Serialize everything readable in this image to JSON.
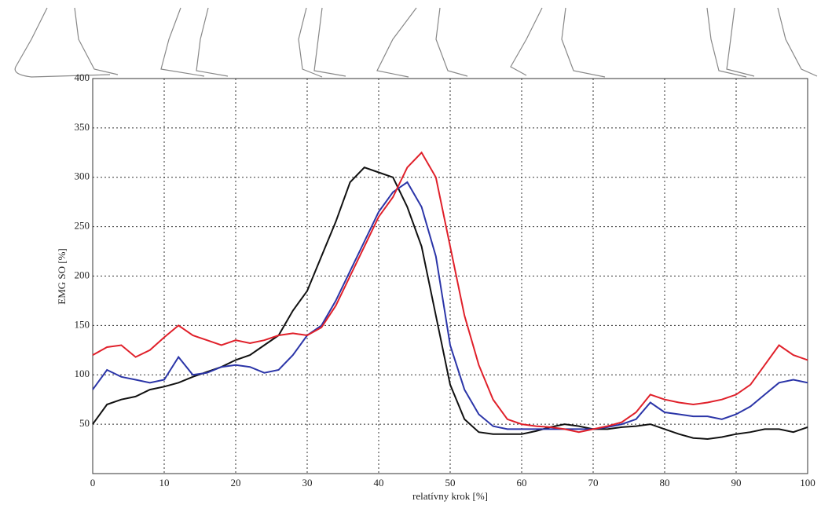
{
  "chart_data": {
    "type": "line",
    "xlabel": "relatívny krok [%]",
    "ylabel": "EMG SO [%]",
    "x": [
      0,
      2,
      4,
      6,
      8,
      10,
      12,
      14,
      16,
      18,
      20,
      22,
      24,
      26,
      28,
      30,
      32,
      34,
      36,
      38,
      40,
      42,
      44,
      46,
      48,
      50,
      52,
      54,
      56,
      58,
      60,
      62,
      64,
      66,
      68,
      70,
      72,
      74,
      76,
      78,
      80,
      82,
      84,
      86,
      88,
      90,
      92,
      94,
      96,
      98,
      100
    ],
    "series": [
      {
        "color": "#111111",
        "values": [
          50,
          70,
          75,
          78,
          85,
          88,
          92,
          98,
          103,
          108,
          115,
          120,
          130,
          140,
          165,
          185,
          220,
          255,
          295,
          310,
          305,
          300,
          270,
          230,
          160,
          90,
          55,
          42,
          40,
          40,
          40,
          43,
          47,
          50,
          48,
          45,
          45,
          47,
          48,
          50,
          45,
          40,
          36,
          35,
          37,
          40,
          42,
          45,
          45,
          42,
          47
        ]
      },
      {
        "color": "#2b35a8",
        "values": [
          85,
          105,
          98,
          95,
          92,
          95,
          118,
          100,
          102,
          108,
          110,
          108,
          102,
          105,
          120,
          140,
          150,
          175,
          205,
          235,
          265,
          285,
          295,
          270,
          220,
          130,
          85,
          60,
          48,
          45,
          45,
          45,
          45,
          45,
          45,
          45,
          47,
          50,
          55,
          72,
          62,
          60,
          58,
          58,
          55,
          60,
          68,
          80,
          92,
          95,
          92
        ]
      },
      {
        "color": "#e0202a",
        "values": [
          120,
          128,
          130,
          118,
          125,
          138,
          150,
          140,
          135,
          130,
          135,
          132,
          135,
          140,
          142,
          140,
          148,
          170,
          200,
          230,
          260,
          280,
          310,
          325,
          300,
          230,
          160,
          110,
          75,
          55,
          50,
          48,
          47,
          45,
          42,
          45,
          48,
          52,
          62,
          80,
          75,
          72,
          70,
          72,
          75,
          80,
          90,
          110,
          130,
          120,
          115
        ]
      }
    ],
    "xlim": [
      0,
      100
    ],
    "ylim": [
      0,
      400
    ],
    "xticks": [
      0,
      10,
      20,
      30,
      40,
      50,
      60,
      70,
      80,
      90,
      100
    ],
    "yticks": [
      50,
      100,
      150,
      200,
      250,
      300,
      350,
      400
    ],
    "grid": true
  }
}
